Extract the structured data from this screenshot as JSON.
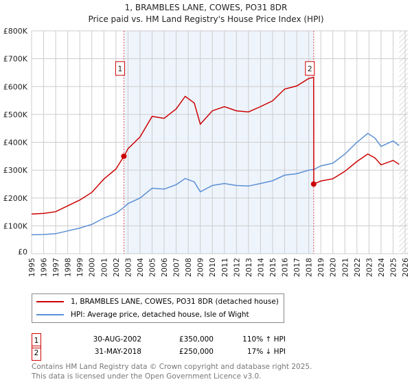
{
  "chart_data": {
    "type": "line",
    "title": "1, BRAMBLES LANE, COWES, PO31 8DR",
    "subtitle": "Price paid vs. HM Land Registry's House Price Index (HPI)",
    "xlim": [
      1995,
      2026
    ],
    "ylim": [
      0,
      800000
    ],
    "grid": true,
    "x_ticks": [
      "1995",
      "1996",
      "1997",
      "1998",
      "1999",
      "2000",
      "2001",
      "2002",
      "2003",
      "2004",
      "2005",
      "2006",
      "2007",
      "2008",
      "2009",
      "2010",
      "2011",
      "2012",
      "2013",
      "2014",
      "2015",
      "2016",
      "2017",
      "2018",
      "2019",
      "2020",
      "2021",
      "2022",
      "2023",
      "2024",
      "2025",
      "2026"
    ],
    "y_ticks": [
      {
        "v": 0,
        "label": "£0"
      },
      {
        "v": 100000,
        "label": "£100K"
      },
      {
        "v": 200000,
        "label": "£200K"
      },
      {
        "v": 300000,
        "label": "£300K"
      },
      {
        "v": 400000,
        "label": "£400K"
      },
      {
        "v": 500000,
        "label": "£500K"
      },
      {
        "v": 600000,
        "label": "£600K"
      },
      {
        "v": 700000,
        "label": "£700K"
      },
      {
        "v": 800000,
        "label": "£800K"
      }
    ],
    "series": [
      {
        "name": "1, BRAMBLES LANE, COWES, PO31 8DR (detached house)",
        "color": "#cc0000",
        "x": [
          1995,
          1996,
          1997,
          1998,
          1999,
          2000,
          2001,
          2002,
          2002.67,
          2003,
          2004,
          2005,
          2006,
          2007,
          2007.75,
          2008.5,
          2009,
          2010,
          2011,
          2012,
          2013,
          2014,
          2015,
          2016,
          2017,
          2018,
          2018.41,
          2018.42,
          2019,
          2020,
          2021,
          2022,
          2022.9,
          2023.5,
          2024,
          2025,
          2025.5
        ],
        "y": [
          142500,
          144600,
          150900,
          171900,
          192800,
          220000,
          268000,
          304000,
          350000,
          377000,
          419000,
          493000,
          486000,
          520000,
          565000,
          541000,
          465000,
          513000,
          528000,
          513000,
          509000,
          528000,
          549000,
          591000,
          602000,
          629000,
          633000,
          250000,
          261000,
          269000,
          296000,
          331000,
          358000,
          344000,
          319000,
          335000,
          321000
        ]
      },
      {
        "name": "HPI: Average price, detached house, Isle of Wight",
        "color": "#5b8fd4",
        "x": [
          1995,
          1996,
          1997,
          1998,
          1999,
          2000,
          2001,
          2002,
          2002.67,
          2003,
          2004,
          2005,
          2006,
          2007,
          2007.75,
          2008.5,
          2009,
          2010,
          2011,
          2012,
          2013,
          2014,
          2015,
          2016,
          2017,
          2018,
          2018.41,
          2019,
          2020,
          2021,
          2022,
          2022.9,
          2023.5,
          2024,
          2025,
          2025.5
        ],
        "y": [
          68000,
          69000,
          72000,
          82000,
          92000,
          105000,
          128000,
          145000,
          167000,
          180000,
          200000,
          235000,
          232000,
          248000,
          270000,
          258000,
          222000,
          245000,
          252000,
          245000,
          243000,
          252000,
          262000,
          282000,
          287000,
          300000,
          302000,
          315000,
          325000,
          358000,
          400000,
          432000,
          415000,
          385000,
          405000,
          388000
        ]
      }
    ],
    "sales": [
      {
        "id": "1",
        "x": 2002.66,
        "y": 350000,
        "date": "30-AUG-2002",
        "price": "£350,000",
        "hpi": "110% ↑ HPI"
      },
      {
        "id": "2",
        "x": 2018.41,
        "y": 250000,
        "date": "31-MAY-2018",
        "price": "£250,000",
        "hpi": "17% ↓ HPI"
      }
    ],
    "marker_label_y": 665000,
    "forecast_start": 2025.5,
    "shade_color": "#eef4fc"
  },
  "legend": {
    "red": "1, BRAMBLES LANE, COWES, PO31 8DR (detached house)",
    "blue": "HPI: Average price, detached house, Isle of Wight"
  },
  "footer": {
    "line1": "Contains HM Land Registry data © Crown copyright and database right 2025.",
    "line2": "This data is licensed under the Open Government Licence v3.0."
  }
}
